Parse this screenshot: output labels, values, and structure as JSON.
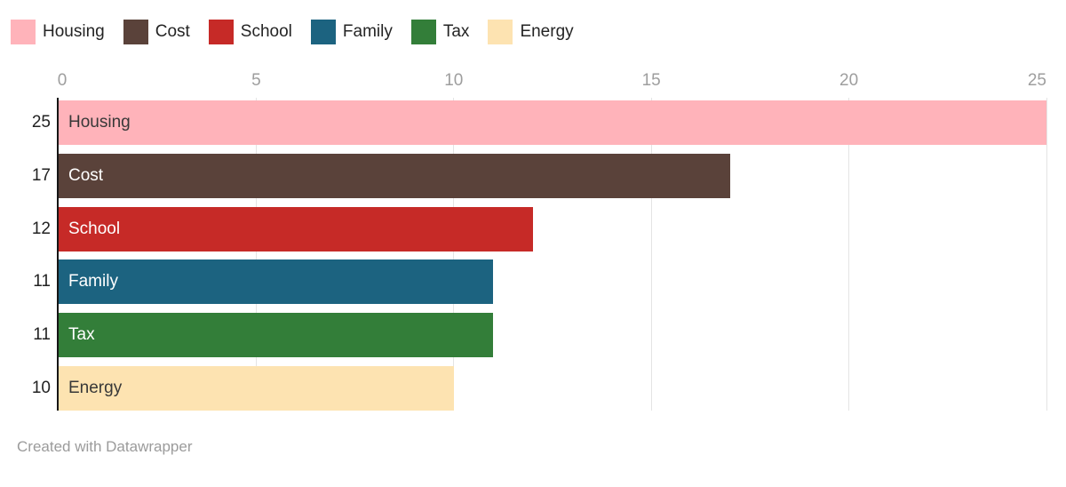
{
  "chart_data": {
    "type": "bar",
    "orientation": "horizontal",
    "title": "",
    "categories": [
      "Housing",
      "Cost",
      "School",
      "Family",
      "Tax",
      "Energy"
    ],
    "values": [
      25,
      17,
      12,
      11,
      11,
      10
    ],
    "value_labels": [
      "25",
      "17",
      "12",
      "11",
      "11",
      "10"
    ],
    "colors": [
      "#FFB3BA",
      "#5A423A",
      "#C62A27",
      "#1C6380",
      "#337E39",
      "#FDE3B1"
    ],
    "bar_label_tone": [
      "dark",
      "light",
      "light",
      "light",
      "light",
      "dark"
    ],
    "x_ticks": [
      0,
      5,
      10,
      15,
      20,
      25
    ],
    "x_tick_labels": [
      "0",
      "5",
      "10",
      "15",
      "20",
      "25"
    ],
    "xlim": [
      0,
      25
    ],
    "grid": true,
    "legend_position": "top"
  },
  "legend": {
    "items": [
      {
        "label": "Housing",
        "color": "#FFB3BA"
      },
      {
        "label": "Cost",
        "color": "#5A423A"
      },
      {
        "label": "School",
        "color": "#C62A27"
      },
      {
        "label": "Family",
        "color": "#1C6380"
      },
      {
        "label": "Tax",
        "color": "#337E39"
      },
      {
        "label": "Energy",
        "color": "#FDE3B1"
      }
    ]
  },
  "footer": {
    "credit": "Created with Datawrapper"
  },
  "ui_colors": {
    "axis_line": "#161616",
    "gridline": "#e4e4e4",
    "tick_text": "#9e9e9e",
    "value_text": "#222222",
    "footer_text": "#9b9b9b"
  }
}
